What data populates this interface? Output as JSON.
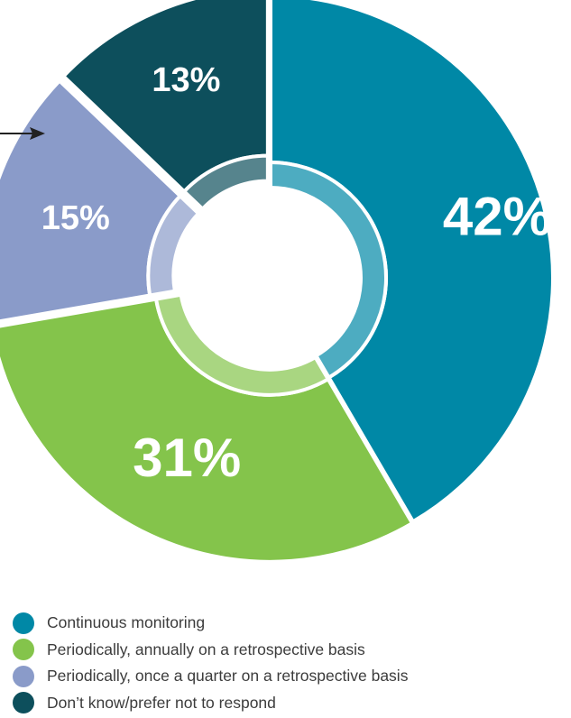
{
  "chart_data": {
    "type": "pie",
    "donut": true,
    "labels": [
      "Continuous monitoring",
      "Periodically, annually on a retrospective basis",
      "Periodically, once a quarter on a retrospective basis",
      "Don’t know/prefer not to respond"
    ],
    "values": [
      42,
      31,
      15,
      13
    ],
    "value_labels": [
      "42%",
      "31%",
      "15%",
      "13%"
    ],
    "colors": [
      "#0088a6",
      "#84c44b",
      "#8a9bc9",
      "#0d4f5c"
    ],
    "legend_position": "bottom-left",
    "exploded": true
  },
  "legend": {
    "items": [
      {
        "label": "Continuous monitoring",
        "color": "#0088a6"
      },
      {
        "label": "Periodically, annually on a retrospective basis",
        "color": "#84c44b"
      },
      {
        "label": "Periodically, once a quarter on a retrospective basis",
        "color": "#8a9bc9"
      },
      {
        "label": "Don’t know/prefer not to respond",
        "color": "#0d4f5c"
      }
    ]
  }
}
